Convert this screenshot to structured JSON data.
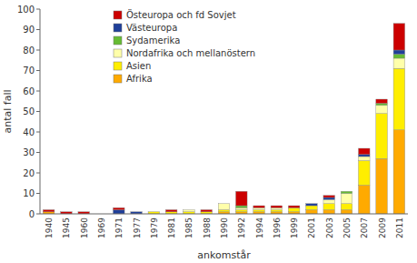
{
  "chart_data": {
    "type": "bar",
    "stacked": true,
    "grid": false,
    "legend": "upper left",
    "xlabel": "ankomstår",
    "ylabel": "antal fall",
    "categories": [
      "1940",
      "1945",
      "1960",
      "1969",
      "1971",
      "1977",
      "1979",
      "1981",
      "1985",
      "1988",
      "1990",
      "1992",
      "1994",
      "1996",
      "1999",
      "2001",
      "2003",
      "2005",
      "2007",
      "2009",
      "2011"
    ],
    "series": [
      {
        "name": "Afrika",
        "color": "#FFAA00",
        "values": [
          1,
          0,
          0,
          0,
          0,
          0,
          0,
          0,
          0,
          0,
          1,
          1,
          1,
          1,
          1,
          2,
          2,
          2,
          14,
          27,
          41
        ]
      },
      {
        "name": "Asien",
        "color": "#FFEE00",
        "values": [
          0,
          0,
          0,
          0,
          0,
          0,
          1,
          1,
          1,
          1,
          1,
          1,
          1,
          1,
          2,
          2,
          3,
          3,
          12,
          22,
          30
        ]
      },
      {
        "name": "Nordafrika och mellanöstern",
        "color": "#FFFFAA",
        "values": [
          0,
          0,
          0,
          0,
          0,
          0,
          0,
          0,
          1,
          0,
          3,
          1,
          1,
          1,
          0,
          0,
          2,
          5,
          2,
          4,
          5
        ]
      },
      {
        "name": "Sydamerika",
        "color": "#66BB33",
        "values": [
          0,
          0,
          0,
          0,
          0,
          0,
          0,
          0,
          0,
          0,
          0,
          1,
          0,
          0,
          0,
          0,
          0,
          1,
          0,
          1,
          2
        ]
      },
      {
        "name": "Västeuropa",
        "color": "#1F3F99",
        "values": [
          0,
          0,
          0,
          0,
          2,
          1,
          0,
          0,
          0,
          0,
          0,
          0,
          0,
          0,
          0,
          1,
          1,
          0,
          1,
          0,
          2
        ]
      },
      {
        "name": "Östeuropa och fd Sovjet",
        "color": "#CC0000",
        "values": [
          1,
          1,
          1,
          0,
          1,
          0,
          0,
          1,
          0,
          1,
          0,
          7,
          1,
          1,
          1,
          0,
          1,
          0,
          3,
          2,
          13
        ]
      }
    ],
    "ylim": [
      0,
      100
    ],
    "yticks": [
      0,
      10,
      20,
      30,
      40,
      50,
      60,
      70,
      80,
      90,
      100
    ]
  }
}
